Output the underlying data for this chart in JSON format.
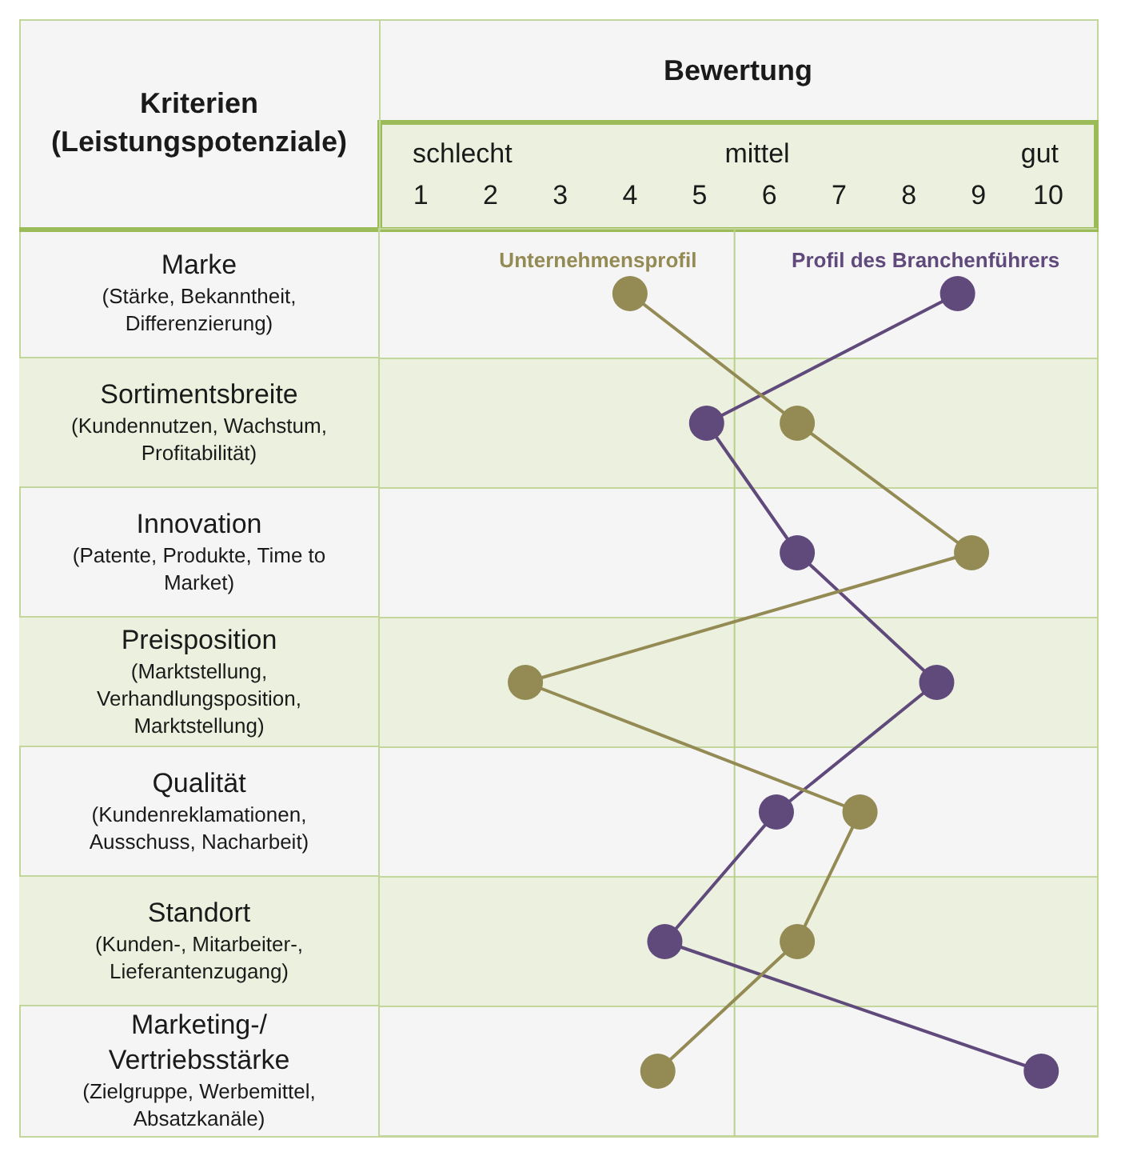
{
  "chart_data": {
    "type": "line",
    "orientation": "horizontal",
    "xlabel": "Bewertung",
    "ylabel": "Kriterien (Leistungspotenziale)",
    "categories": [
      "Marke (Stärke, Bekanntheit, Differenzierung)",
      "Sortimentsbreite (Kundennutzen, Wachstum, Profitabilität)",
      "Innovation (Patente, Produkte, Time to Market)",
      "Preisposition (Marktstellung, Verhandlungsposition, Marktstellung)",
      "Qualität (Kundenreklamationen, Ausschuss, Nacharbeit)",
      "Standort (Kunden-, Mitarbeiter-, Lieferantenzugang)",
      "Marketing-/Vertriebsstärke (Zielgruppe, Werbemittel, Absatzkanäle)"
    ],
    "series": [
      {
        "name": "Unternehmensprofil",
        "color": "#948a54",
        "values": [
          4,
          6.4,
          8.9,
          2.5,
          7.3,
          6.4,
          4.4
        ]
      },
      {
        "name": "Profil des Branchenführers",
        "color": "#604a7b",
        "values": [
          8.7,
          5.1,
          6.4,
          8.4,
          6.1,
          4.5,
          9.9
        ]
      }
    ],
    "xlim": [
      0.4,
      10.7
    ],
    "xticks": [
      1,
      2,
      3,
      4,
      5,
      6,
      7,
      8,
      9,
      10
    ],
    "annotations": [
      "schlecht",
      "mittel",
      "gut"
    ],
    "ref_lines": [
      {
        "axis": "x",
        "value": 5.5,
        "color": "#b9cf8c"
      }
    ],
    "grid": "y",
    "marker": "circle",
    "line_style": "solid"
  }
}
